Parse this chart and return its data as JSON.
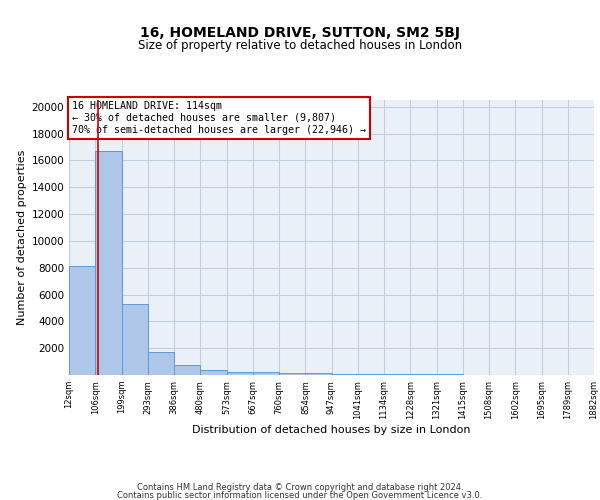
{
  "title1": "16, HOMELAND DRIVE, SUTTON, SM2 5BJ",
  "title2": "Size of property relative to detached houses in London",
  "xlabel": "Distribution of detached houses by size in London",
  "ylabel": "Number of detached properties",
  "bar_values": [
    8100,
    16700,
    5300,
    1750,
    750,
    350,
    250,
    200,
    175,
    150,
    100,
    80,
    60,
    50,
    40,
    35,
    30,
    25,
    20,
    15
  ],
  "bin_edges": [
    12,
    106,
    199,
    293,
    386,
    480,
    573,
    667,
    760,
    854,
    947,
    1041,
    1134,
    1228,
    1321,
    1415,
    1508,
    1602,
    1695,
    1789,
    1882
  ],
  "tick_labels": [
    "12sqm",
    "106sqm",
    "199sqm",
    "293sqm",
    "386sqm",
    "480sqm",
    "573sqm",
    "667sqm",
    "760sqm",
    "854sqm",
    "947sqm",
    "1041sqm",
    "1134sqm",
    "1228sqm",
    "1321sqm",
    "1415sqm",
    "1508sqm",
    "1602sqm",
    "1695sqm",
    "1789sqm",
    "1882sqm"
  ],
  "bar_color": "#aec6e8",
  "bar_edge_color": "#5b9bd5",
  "bg_color": "#eaf0f8",
  "grid_color": "#c0cfe0",
  "red_line_x": 114,
  "annotation_title": "16 HOMELAND DRIVE: 114sqm",
  "annotation_line1": "← 30% of detached houses are smaller (9,807)",
  "annotation_line2": "70% of semi-detached houses are larger (22,946) →",
  "annotation_box_color": "#ffffff",
  "annotation_box_edge": "#cc0000",
  "ylim": [
    0,
    20500
  ],
  "yticks": [
    0,
    2000,
    4000,
    6000,
    8000,
    10000,
    12000,
    14000,
    16000,
    18000,
    20000
  ],
  "footer1": "Contains HM Land Registry data © Crown copyright and database right 2024.",
  "footer2": "Contains public sector information licensed under the Open Government Licence v3.0."
}
